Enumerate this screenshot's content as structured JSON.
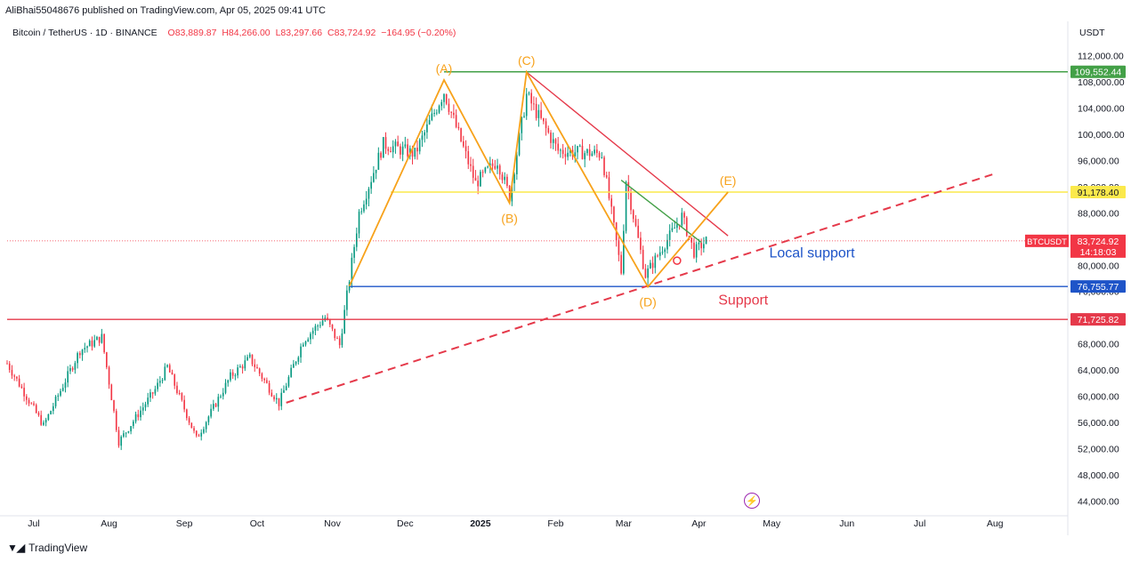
{
  "publish_info": "AliBhai55048676 published on TradingView.com, Apr 05, 2025 09:41 UTC",
  "legend": {
    "symbol": "Bitcoin / TetherUS · 1D · BINANCE",
    "open": "O83,889.87",
    "high": "H84,266.00",
    "low": "L83,297.66",
    "close": "C83,724.92",
    "change": "−164.95 (−0.20%)"
  },
  "currency": "USDT",
  "footer": {
    "logo_text": "TradingView"
  },
  "colors": {
    "up": "#089981",
    "down": "#f23645",
    "wave": "#f7a21b",
    "green_line": "#43a047",
    "yellow_line": "#fbe94b",
    "blue_line": "#1e54c8",
    "red_line": "#e5394a",
    "support_text": "#e5394a",
    "local_support_text": "#1e54c8"
  },
  "icons": {
    "flash": "flash-icon",
    "logo": "tradingview-logo-icon"
  },
  "chart_data": {
    "type": "candlestick",
    "title": "",
    "xlabel": "",
    "ylabel": "",
    "ylim": [
      42000,
      114000
    ],
    "x_range": [
      "2024-06-20",
      "2025-08-31"
    ],
    "y_ticks": [
      "112,000.00",
      "108,000.00",
      "104,000.00",
      "100,000.00",
      "96,000.00",
      "92,000.00",
      "88,000.00",
      "84,000.00",
      "80,000.00",
      "76,000.00",
      "72,000.00",
      "68,000.00",
      "64,000.00",
      "60,000.00",
      "56,000.00",
      "52,000.00",
      "48,000.00",
      "44,000.00"
    ],
    "x_ticks": [
      {
        "label": "Jul",
        "date": "2024-07-01"
      },
      {
        "label": "Aug",
        "date": "2024-08-01"
      },
      {
        "label": "Sep",
        "date": "2024-09-01"
      },
      {
        "label": "Oct",
        "date": "2024-10-01"
      },
      {
        "label": "Nov",
        "date": "2024-11-01"
      },
      {
        "label": "Dec",
        "date": "2024-12-01"
      },
      {
        "label": "2025",
        "date": "2025-01-01"
      },
      {
        "label": "Feb",
        "date": "2025-02-01"
      },
      {
        "label": "Mar",
        "date": "2025-03-01"
      },
      {
        "label": "Apr",
        "date": "2025-04-01"
      },
      {
        "label": "May",
        "date": "2025-05-01"
      },
      {
        "label": "Jun",
        "date": "2025-06-01"
      },
      {
        "label": "Jul",
        "date": "2025-07-01"
      },
      {
        "label": "Aug",
        "date": "2025-08-01"
      }
    ],
    "price_path": [
      [
        "2024-06-20",
        65000
      ],
      [
        "2024-07-05",
        55500
      ],
      [
        "2024-07-20",
        67000
      ],
      [
        "2024-07-29",
        69000
      ],
      [
        "2024-08-05",
        53000
      ],
      [
        "2024-08-20",
        61000
      ],
      [
        "2024-08-25",
        64500
      ],
      [
        "2024-09-06",
        53500
      ],
      [
        "2024-09-20",
        63000
      ],
      [
        "2024-09-28",
        65800
      ],
      [
        "2024-10-10",
        58900
      ],
      [
        "2024-10-20",
        68500
      ],
      [
        "2024-10-29",
        72000
      ],
      [
        "2024-11-04",
        67800
      ],
      [
        "2024-11-12",
        88000
      ],
      [
        "2024-11-22",
        98500
      ],
      [
        "2024-12-05",
        97000
      ],
      [
        "2024-12-17",
        106500
      ],
      [
        "2024-12-30",
        92500
      ],
      [
        "2025-01-08",
        96000
      ],
      [
        "2025-01-13",
        90500
      ],
      [
        "2025-01-20",
        106000
      ],
      [
        "2025-02-02",
        97500
      ],
      [
        "2025-02-20",
        97000
      ],
      [
        "2025-02-28",
        79000
      ],
      [
        "2025-03-02",
        93000
      ],
      [
        "2025-03-10",
        78500
      ],
      [
        "2025-03-25",
        87500
      ],
      [
        "2025-03-30",
        82000
      ],
      [
        "2025-04-04",
        83724.92
      ]
    ],
    "horizontal_levels": [
      {
        "label": "109,552.44",
        "price": 109552.44,
        "color": "#43a047",
        "start": "2024-12-17"
      },
      {
        "label": "91,178.40",
        "price": 91178.4,
        "color": "#fbe94b",
        "start": "2024-11-25"
      },
      {
        "label": "76,755.77",
        "price": 76755.77,
        "color": "#1e54c8",
        "start": "2024-11-08"
      },
      {
        "label": "71,725.82",
        "price": 71725.82,
        "color": "#e5394a",
        "start": "2024-06-20"
      }
    ],
    "current_price": {
      "symbol": "BTCUSDT",
      "price_label": "83,724.92",
      "countdown": "14:18:03",
      "price": 83724.92
    },
    "wave_points": [
      {
        "label": "(A)",
        "date": "2024-12-17",
        "price": 108300
      },
      {
        "label": "(B)",
        "date": "2025-01-13",
        "price": 89500
      },
      {
        "label": "(C)",
        "date": "2025-01-20",
        "price": 109500
      },
      {
        "label": "(D)",
        "date": "2025-03-11",
        "price": 76700
      },
      {
        "label": "(E)",
        "date": "2025-04-13",
        "price": 91178
      }
    ],
    "wave_start": {
      "date": "2024-11-08",
      "price": 76800
    },
    "trendlines": [
      {
        "name": "upper-resistance",
        "color": "#e5394a",
        "from": [
          "2025-01-20",
          109500
        ],
        "to": [
          "2025-04-13",
          84500
        ]
      },
      {
        "name": "green-trend",
        "color": "#43a047",
        "from": [
          "2025-02-28",
          93000
        ],
        "to": [
          "2025-04-02",
          83500
        ]
      },
      {
        "name": "rising-support",
        "color": "#e5394a",
        "dashed": true,
        "from": [
          "2024-10-13",
          59000
        ],
        "to": [
          "2025-08-01",
          94000
        ]
      }
    ],
    "annotations": [
      {
        "text": "Local support",
        "color": "#1e54c8",
        "date": "2025-04-30",
        "price": 81200
      },
      {
        "text": "Support",
        "color": "#e5394a",
        "date": "2025-04-09",
        "price": 74000
      }
    ],
    "marker": {
      "date": "2025-03-23",
      "price": 80700
    }
  }
}
